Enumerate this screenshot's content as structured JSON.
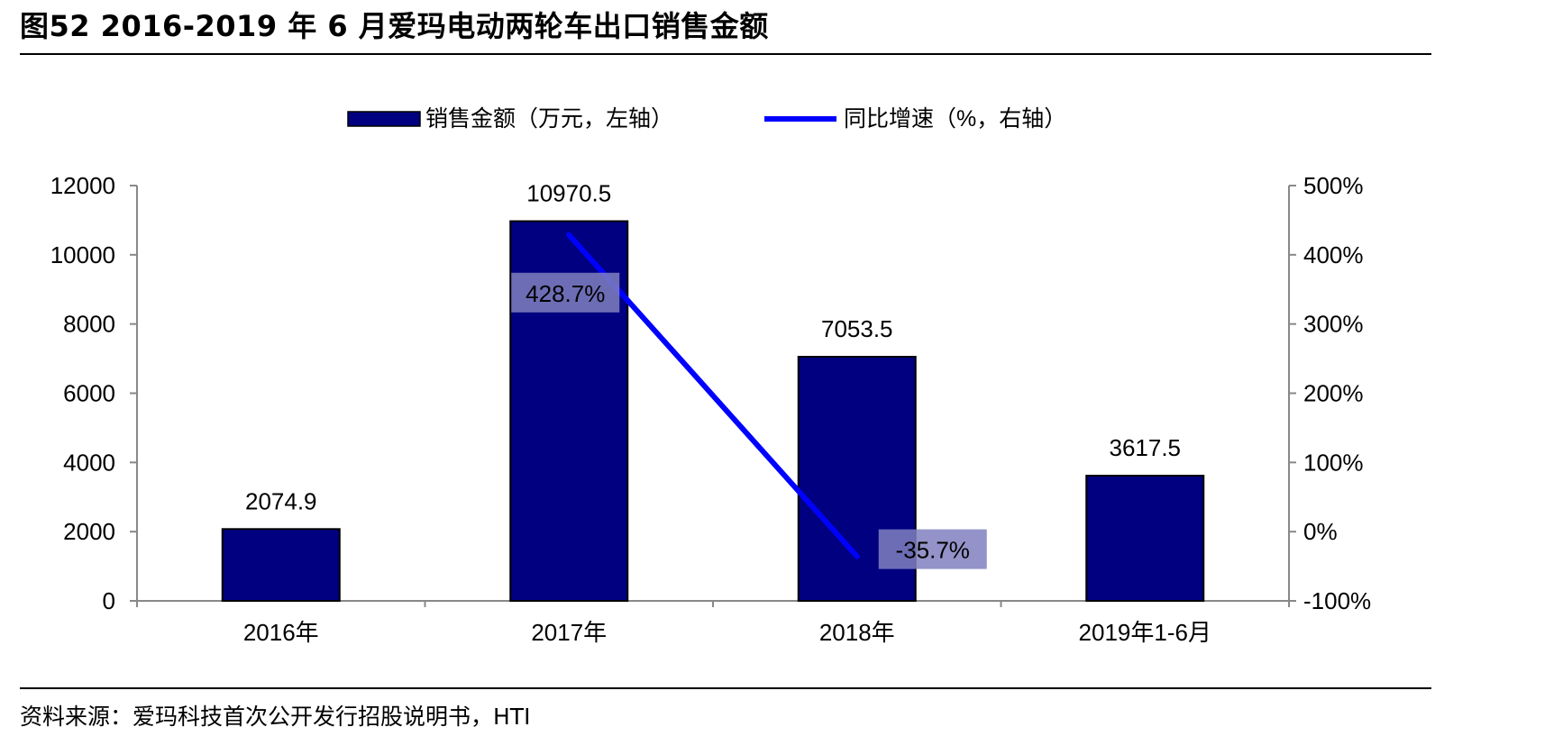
{
  "title": "图52 2016-2019 年 6 月爱玛电动两轮车出口销售金额",
  "source": "资料来源：爱玛科技首次公开发行招股说明书，HTI",
  "colors": {
    "bar": "#000080",
    "line": "#0000ff",
    "label_bg": "#8080c0"
  },
  "chart_data": {
    "type": "bar",
    "categories": [
      "2016年",
      "2017年",
      "2018年",
      "2019年1-6月"
    ],
    "series": [
      {
        "name": "销售金额（万元，左轴）",
        "type": "bar",
        "axis": "left",
        "values": [
          2074.9,
          10970.5,
          7053.5,
          3617.5
        ],
        "labels": [
          "2074.9",
          "10970.5",
          "7053.5",
          "3617.5"
        ]
      },
      {
        "name": "同比增速（%，右轴）",
        "type": "line",
        "axis": "right",
        "values": [
          null,
          428.7,
          -35.7,
          null
        ],
        "labels": [
          "",
          "428.7%",
          "-35.7%",
          ""
        ]
      }
    ],
    "ylim": [
      0,
      12000
    ],
    "yticks": [
      "0",
      "2000",
      "4000",
      "6000",
      "8000",
      "10000",
      "12000"
    ],
    "y2lim": [
      -100,
      500
    ],
    "y2ticks": [
      "-100%",
      "0%",
      "100%",
      "200%",
      "300%",
      "400%",
      "500%"
    ],
    "legend_position": "top",
    "grid": false
  }
}
